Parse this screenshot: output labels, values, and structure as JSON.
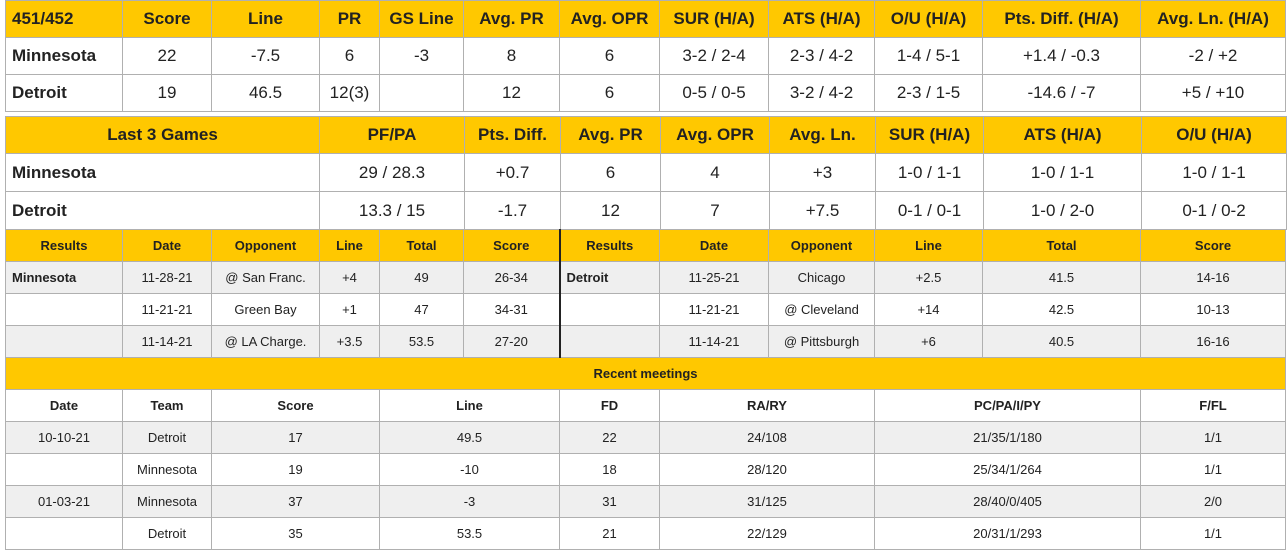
{
  "matchup": {
    "headers": [
      "451/452",
      "Score",
      "Line",
      "PR",
      "GS Line",
      "Avg. PR",
      "Avg. OPR",
      "SUR (H/A)",
      "ATS (H/A)",
      "O/U (H/A)",
      "Pts. Diff. (H/A)",
      "Avg. Ln. (H/A)"
    ],
    "rows": [
      [
        "Minnesota",
        "22",
        "-7.5",
        "6",
        "-3",
        "8",
        "6",
        "3-2 / 2-4",
        "2-3 / 4-2",
        "1-4 / 5-1",
        "+1.4 / -0.3",
        "-2 / +2"
      ],
      [
        "Detroit",
        "19",
        "46.5",
        "12(3)",
        "",
        "12",
        "6",
        "0-5 / 0-5",
        "3-2 / 4-2",
        "2-3 / 1-5",
        "-14.6 / -7",
        "+5 / +10"
      ]
    ]
  },
  "last3": {
    "headers": [
      "Last 3 Games",
      "PF/PA",
      "Pts. Diff.",
      "Avg. PR",
      "Avg. OPR",
      "Avg. Ln.",
      "SUR (H/A)",
      "ATS (H/A)",
      "O/U (H/A)"
    ],
    "rows": [
      [
        "Minnesota",
        "29 / 28.3",
        "+0.7",
        "6",
        "4",
        "+3",
        "1-0 / 1-1",
        "1-0 / 1-1",
        "1-0 / 1-1"
      ],
      [
        "Detroit",
        "13.3 / 15",
        "-1.7",
        "12",
        "7",
        "+7.5",
        "0-1 / 0-1",
        "1-0 / 2-0",
        "0-1 / 0-2"
      ]
    ]
  },
  "results": {
    "headers": [
      "Results",
      "Date",
      "Opponent",
      "Line",
      "Total",
      "Score",
      "Results",
      "Date",
      "Opponent",
      "Line",
      "Total",
      "Score"
    ],
    "rows": [
      [
        "Minnesota",
        "11-28-21",
        "@ San Franc.",
        "+4",
        "49",
        "26-34",
        "Detroit",
        "11-25-21",
        "Chicago",
        "+2.5",
        "41.5",
        "14-16"
      ],
      [
        "",
        "11-21-21",
        "Green Bay",
        "+1",
        "47",
        "34-31",
        "",
        "11-21-21",
        "@ Cleveland",
        "+14",
        "42.5",
        "10-13"
      ],
      [
        "",
        "11-14-21",
        "@ LA Charge.",
        "+3.5",
        "53.5",
        "27-20",
        "",
        "11-14-21",
        "@ Pittsburgh",
        "+6",
        "40.5",
        "16-16"
      ]
    ]
  },
  "meetings": {
    "title": "Recent meetings",
    "headers": [
      "Date",
      "Team",
      "Score",
      "Line",
      "FD",
      "RA/RY",
      "PC/PA/I/PY",
      "F/FL"
    ],
    "rows": [
      [
        "10-10-21",
        "Detroit",
        "17",
        "49.5",
        "22",
        "24/108",
        "21/35/1/180",
        "1/1"
      ],
      [
        "",
        "Minnesota",
        "19",
        "-10",
        "18",
        "28/120",
        "25/34/1/264",
        "1/1"
      ],
      [
        "01-03-21",
        "Minnesota",
        "37",
        "-3",
        "31",
        "31/125",
        "28/40/0/405",
        "2/0"
      ],
      [
        "",
        "Detroit",
        "35",
        "53.5",
        "21",
        "22/129",
        "20/31/1/293",
        "1/1"
      ]
    ]
  },
  "colors": {
    "header": "#ffc800",
    "row_alt": "#efefef",
    "border": "#b0b0b0"
  }
}
